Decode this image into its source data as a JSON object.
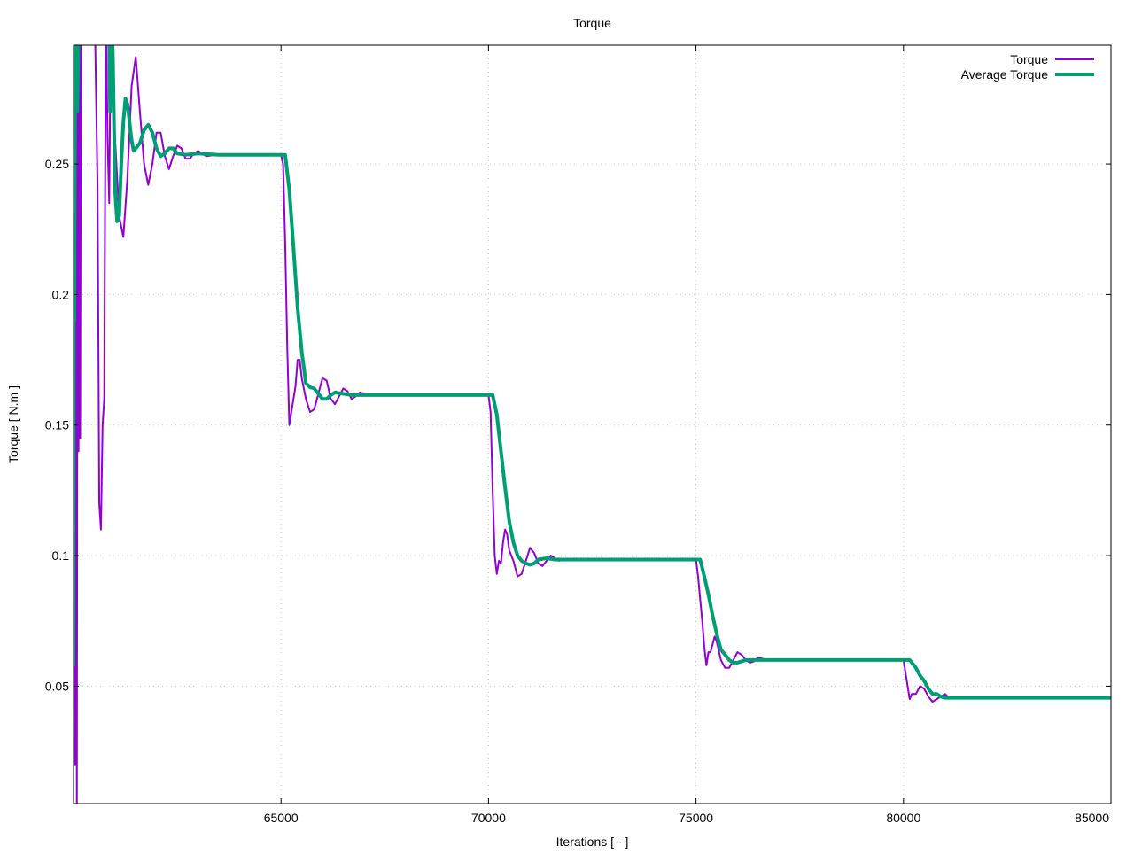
{
  "chart_data": {
    "type": "line",
    "title": "Torque",
    "xlabel": "Iterations [ - ]",
    "ylabel": "Torque [ N.m ]",
    "xlim": [
      60000,
      85000
    ],
    "ylim": [
      0.005,
      0.2955
    ],
    "x_ticks": [
      65000,
      70000,
      75000,
      80000,
      85000
    ],
    "y_ticks": [
      0.05,
      0.1,
      0.15,
      0.2,
      0.25
    ],
    "x_tick_labels": [
      "65000",
      "70000",
      "75000",
      "80000",
      "85000"
    ],
    "y_tick_labels": [
      "0.05",
      "0.1",
      "0.15",
      "0.2",
      "0.25"
    ],
    "grid": true,
    "legend_position": "top-right",
    "series": [
      {
        "name": "Torque",
        "color": "#9400d3",
        "width": 2,
        "points": [
          [
            60000,
            0.06
          ],
          [
            60020,
            0.22
          ],
          [
            60040,
            0.02
          ],
          [
            60060,
            0.29
          ],
          [
            60080,
            0.0
          ],
          [
            60100,
            0.31
          ],
          [
            60120,
            0.14
          ],
          [
            60140,
            0.31
          ],
          [
            60160,
            0.145
          ],
          [
            60180,
            0.3
          ],
          [
            60220,
            0.33
          ],
          [
            60500,
            0.32
          ],
          [
            60580,
            0.24
          ],
          [
            60620,
            0.12
          ],
          [
            60660,
            0.11
          ],
          [
            60700,
            0.15
          ],
          [
            60740,
            0.16
          ],
          [
            60780,
            0.31
          ],
          [
            60820,
            0.26
          ],
          [
            60860,
            0.235
          ],
          [
            60900,
            0.31
          ],
          [
            61000,
            0.26
          ],
          [
            61100,
            0.23
          ],
          [
            61200,
            0.222
          ],
          [
            61300,
            0.245
          ],
          [
            61400,
            0.28
          ],
          [
            61500,
            0.291
          ],
          [
            61600,
            0.27
          ],
          [
            61700,
            0.25
          ],
          [
            61800,
            0.242
          ],
          [
            61900,
            0.25
          ],
          [
            62000,
            0.262
          ],
          [
            62100,
            0.262
          ],
          [
            62200,
            0.253
          ],
          [
            62300,
            0.248
          ],
          [
            62400,
            0.253
          ],
          [
            62500,
            0.257
          ],
          [
            62600,
            0.256
          ],
          [
            62700,
            0.252
          ],
          [
            62800,
            0.252
          ],
          [
            62900,
            0.254
          ],
          [
            63000,
            0.255
          ],
          [
            63200,
            0.253
          ],
          [
            63500,
            0.2537
          ],
          [
            64000,
            0.2535
          ],
          [
            64500,
            0.2535
          ],
          [
            65000,
            0.2535
          ],
          [
            65050,
            0.25
          ],
          [
            65100,
            0.22
          ],
          [
            65150,
            0.18
          ],
          [
            65200,
            0.15
          ],
          [
            65250,
            0.155
          ],
          [
            65300,
            0.16
          ],
          [
            65350,
            0.165
          ],
          [
            65400,
            0.175
          ],
          [
            65450,
            0.175
          ],
          [
            65500,
            0.168
          ],
          [
            65600,
            0.16
          ],
          [
            65700,
            0.155
          ],
          [
            65800,
            0.156
          ],
          [
            65900,
            0.162
          ],
          [
            66000,
            0.168
          ],
          [
            66100,
            0.167
          ],
          [
            66200,
            0.16
          ],
          [
            66300,
            0.158
          ],
          [
            66400,
            0.161
          ],
          [
            66500,
            0.164
          ],
          [
            66600,
            0.163
          ],
          [
            66700,
            0.16
          ],
          [
            66800,
            0.161
          ],
          [
            66900,
            0.1625
          ],
          [
            67000,
            0.162
          ],
          [
            67200,
            0.1615
          ],
          [
            67500,
            0.1615
          ],
          [
            68000,
            0.1615
          ],
          [
            69000,
            0.1615
          ],
          [
            70000,
            0.1615
          ],
          [
            70050,
            0.155
          ],
          [
            70100,
            0.125
          ],
          [
            70150,
            0.1
          ],
          [
            70200,
            0.093
          ],
          [
            70250,
            0.098
          ],
          [
            70300,
            0.097
          ],
          [
            70350,
            0.105
          ],
          [
            70400,
            0.11
          ],
          [
            70450,
            0.108
          ],
          [
            70500,
            0.102
          ],
          [
            70600,
            0.098
          ],
          [
            70700,
            0.092
          ],
          [
            70800,
            0.093
          ],
          [
            70900,
            0.098
          ],
          [
            71000,
            0.103
          ],
          [
            71100,
            0.101
          ],
          [
            71200,
            0.097
          ],
          [
            71300,
            0.096
          ],
          [
            71400,
            0.098
          ],
          [
            71500,
            0.1
          ],
          [
            71600,
            0.099
          ],
          [
            71700,
            0.098
          ],
          [
            71800,
            0.0985
          ],
          [
            72000,
            0.0985
          ],
          [
            73000,
            0.0985
          ],
          [
            74000,
            0.0985
          ],
          [
            75000,
            0.0985
          ],
          [
            75050,
            0.092
          ],
          [
            75150,
            0.075
          ],
          [
            75200,
            0.065
          ],
          [
            75250,
            0.058
          ],
          [
            75300,
            0.063
          ],
          [
            75350,
            0.063
          ],
          [
            75400,
            0.066
          ],
          [
            75450,
            0.069
          ],
          [
            75500,
            0.067
          ],
          [
            75600,
            0.06
          ],
          [
            75700,
            0.057
          ],
          [
            75800,
            0.057
          ],
          [
            75900,
            0.06
          ],
          [
            76000,
            0.063
          ],
          [
            76100,
            0.062
          ],
          [
            76200,
            0.06
          ],
          [
            76300,
            0.059
          ],
          [
            76400,
            0.0595
          ],
          [
            76500,
            0.061
          ],
          [
            76600,
            0.0605
          ],
          [
            76800,
            0.06
          ],
          [
            77000,
            0.0603
          ],
          [
            78000,
            0.06
          ],
          [
            79000,
            0.06
          ],
          [
            80000,
            0.06
          ],
          [
            80100,
            0.05
          ],
          [
            80150,
            0.045
          ],
          [
            80200,
            0.047
          ],
          [
            80300,
            0.047
          ],
          [
            80400,
            0.05
          ],
          [
            80500,
            0.049
          ],
          [
            80600,
            0.046
          ],
          [
            80700,
            0.044
          ],
          [
            80800,
            0.045
          ],
          [
            80900,
            0.046
          ],
          [
            81000,
            0.047
          ],
          [
            81100,
            0.0455
          ],
          [
            81200,
            0.0455
          ],
          [
            81500,
            0.0455
          ],
          [
            82000,
            0.0455
          ],
          [
            83000,
            0.0455
          ],
          [
            84000,
            0.0453
          ],
          [
            85000,
            0.0453
          ]
        ]
      },
      {
        "name": "Average Torque",
        "color": "#009e73",
        "width": 4,
        "points": [
          [
            60000,
            0.058
          ],
          [
            60010,
            0.22
          ],
          [
            60020,
            0.19
          ],
          [
            60040,
            0.29
          ],
          [
            60060,
            0.3
          ],
          [
            60090,
            0.27
          ],
          [
            60120,
            0.3
          ],
          [
            60160,
            0.3
          ],
          [
            60200,
            0.31
          ],
          [
            60600,
            0.31
          ],
          [
            60860,
            0.3
          ],
          [
            60880,
            0.27
          ],
          [
            60900,
            0.32
          ],
          [
            60950,
            0.29
          ],
          [
            61000,
            0.24
          ],
          [
            61050,
            0.228
          ],
          [
            61100,
            0.23
          ],
          [
            61150,
            0.25
          ],
          [
            61200,
            0.266
          ],
          [
            61250,
            0.275
          ],
          [
            61300,
            0.273
          ],
          [
            61350,
            0.266
          ],
          [
            61400,
            0.259
          ],
          [
            61450,
            0.255
          ],
          [
            61500,
            0.256
          ],
          [
            61600,
            0.258
          ],
          [
            61700,
            0.263
          ],
          [
            61800,
            0.265
          ],
          [
            61900,
            0.262
          ],
          [
            62000,
            0.256
          ],
          [
            62100,
            0.253
          ],
          [
            62200,
            0.254
          ],
          [
            62300,
            0.256
          ],
          [
            62400,
            0.256
          ],
          [
            62500,
            0.254
          ],
          [
            62700,
            0.2535
          ],
          [
            63000,
            0.254
          ],
          [
            63500,
            0.2535
          ],
          [
            64000,
            0.2535
          ],
          [
            65000,
            0.2535
          ],
          [
            65100,
            0.2535
          ],
          [
            65200,
            0.24
          ],
          [
            65300,
            0.218
          ],
          [
            65400,
            0.195
          ],
          [
            65500,
            0.178
          ],
          [
            65600,
            0.166
          ],
          [
            65700,
            0.1645
          ],
          [
            65800,
            0.164
          ],
          [
            65900,
            0.162
          ],
          [
            66000,
            0.16
          ],
          [
            66100,
            0.16
          ],
          [
            66200,
            0.1615
          ],
          [
            66300,
            0.1625
          ],
          [
            66500,
            0.162
          ],
          [
            66700,
            0.1615
          ],
          [
            67000,
            0.1615
          ],
          [
            68000,
            0.1615
          ],
          [
            69000,
            0.1615
          ],
          [
            70000,
            0.1615
          ],
          [
            70100,
            0.1615
          ],
          [
            70200,
            0.154
          ],
          [
            70300,
            0.14
          ],
          [
            70400,
            0.126
          ],
          [
            70500,
            0.113
          ],
          [
            70600,
            0.105
          ],
          [
            70700,
            0.1
          ],
          [
            70800,
            0.098
          ],
          [
            70900,
            0.097
          ],
          [
            71000,
            0.0965
          ],
          [
            71100,
            0.097
          ],
          [
            71200,
            0.0985
          ],
          [
            71400,
            0.099
          ],
          [
            71600,
            0.0985
          ],
          [
            72000,
            0.0985
          ],
          [
            73000,
            0.0985
          ],
          [
            74000,
            0.0985
          ],
          [
            75000,
            0.0985
          ],
          [
            75100,
            0.0985
          ],
          [
            75200,
            0.092
          ],
          [
            75300,
            0.085
          ],
          [
            75400,
            0.077
          ],
          [
            75500,
            0.07
          ],
          [
            75600,
            0.064
          ],
          [
            75700,
            0.062
          ],
          [
            75800,
            0.06
          ],
          [
            75900,
            0.059
          ],
          [
            76000,
            0.059
          ],
          [
            76100,
            0.0595
          ],
          [
            76200,
            0.06
          ],
          [
            76400,
            0.06
          ],
          [
            77000,
            0.06
          ],
          [
            78000,
            0.06
          ],
          [
            79000,
            0.06
          ],
          [
            80000,
            0.06
          ],
          [
            80150,
            0.06
          ],
          [
            80300,
            0.057
          ],
          [
            80400,
            0.054
          ],
          [
            80500,
            0.052
          ],
          [
            80600,
            0.049
          ],
          [
            80700,
            0.047
          ],
          [
            80800,
            0.047
          ],
          [
            80900,
            0.046
          ],
          [
            81000,
            0.0455
          ],
          [
            81200,
            0.0455
          ],
          [
            81500,
            0.0455
          ],
          [
            82000,
            0.0455
          ],
          [
            83000,
            0.0455
          ],
          [
            84000,
            0.0455
          ],
          [
            85000,
            0.0455
          ]
        ]
      }
    ]
  }
}
